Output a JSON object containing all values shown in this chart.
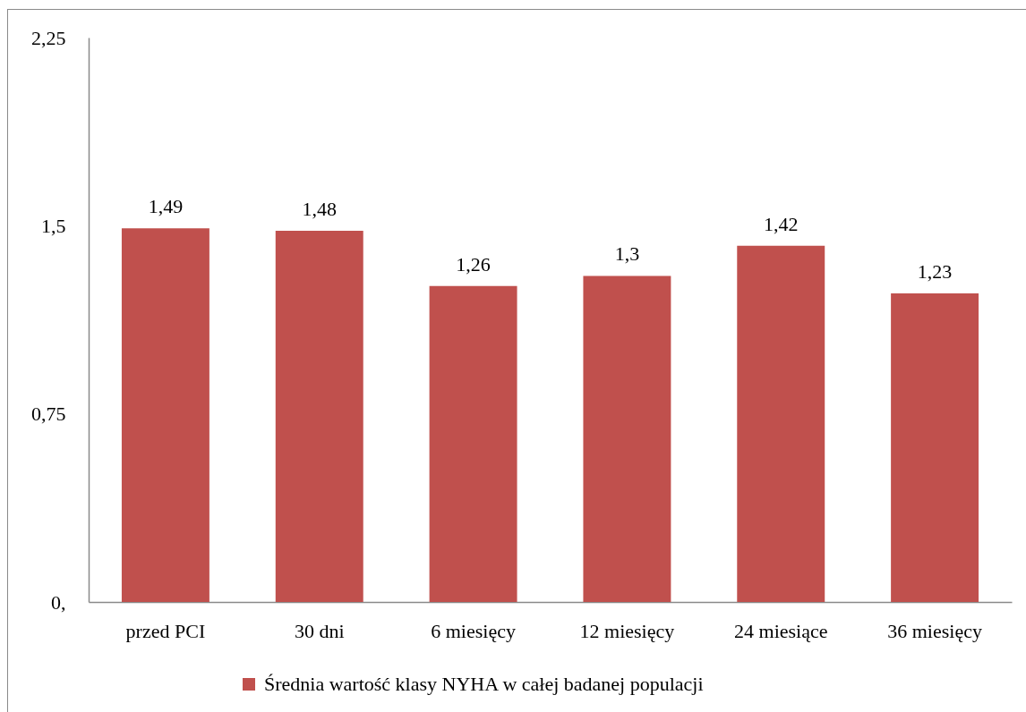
{
  "chart_data": {
    "type": "bar",
    "categories": [
      "przed PCI",
      "30 dni",
      "6 miesięcy",
      "12 miesięcy",
      "24 miesiące",
      "36 miesięcy"
    ],
    "series": [
      {
        "name": "Średnia wartość klasy NYHA w całej badanej populacji",
        "color": "#c0504d",
        "values": [
          1.49,
          1.48,
          1.26,
          1.3,
          1.42,
          1.23
        ],
        "value_labels": [
          "1,49",
          "1,48",
          "1,26",
          "1,3",
          "1,42",
          "1,23"
        ]
      }
    ],
    "ylim": [
      0,
      2.25
    ],
    "yticks": [
      {
        "value": 0,
        "label": "0,"
      },
      {
        "value": 0.75,
        "label": "0,75"
      },
      {
        "value": 1.5,
        "label": "1,5"
      },
      {
        "value": 2.25,
        "label": "2,25"
      }
    ],
    "grid": false,
    "legend": "bottom"
  }
}
